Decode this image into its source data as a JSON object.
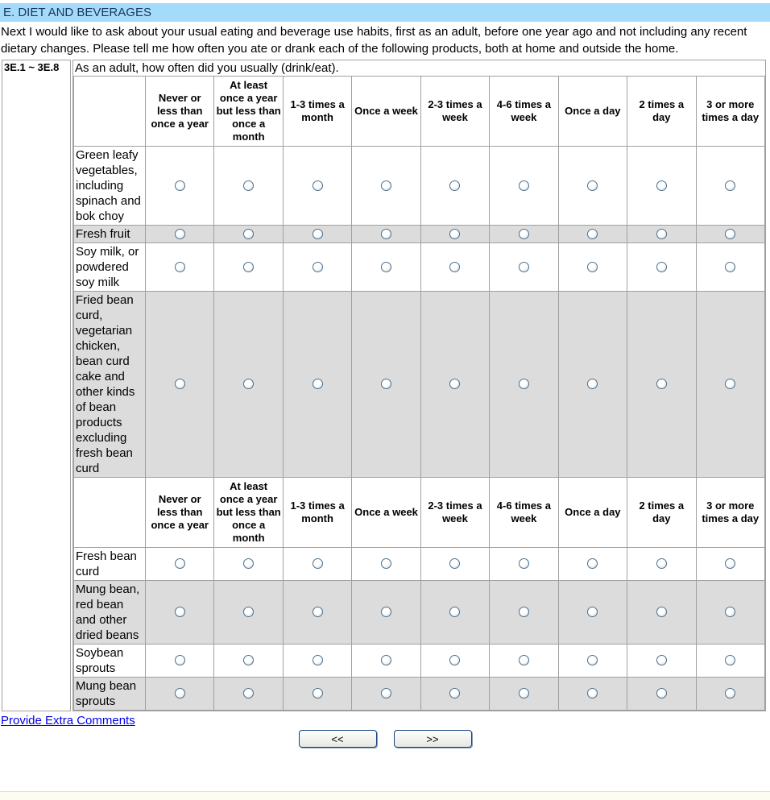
{
  "section": {
    "title": "E. DIET AND BEVERAGES"
  },
  "intro": "Next I would like to ask about your usual eating and beverage use habits, first as an adult, before one year ago and not including any recent dietary changes. Please tell me how often you ate or drank each of the following products, both at home and outside the home.",
  "question": {
    "number": "3E.1 ~ 3E.8",
    "text": "As an adult, how often did you usually (drink/eat)."
  },
  "frequency_options": [
    "Never or less than once a year",
    "At least once a year but less than once a month",
    "1-3 times a month",
    "Once a week",
    "2-3 times a week",
    "4-6 times a week",
    "Once a day",
    "2 times a day",
    "3 or more times a day"
  ],
  "items_group1": [
    {
      "label": "Green leafy vegetables, including spinach and bok choy",
      "shaded": false
    },
    {
      "label": "Fresh fruit",
      "shaded": true
    },
    {
      "label": "Soy milk, or powdered soy milk",
      "shaded": false
    },
    {
      "label": "Fried bean curd, vegetarian chicken, bean curd cake and other kinds of bean products excluding fresh bean curd",
      "shaded": true
    }
  ],
  "items_group2": [
    {
      "label": "Fresh bean curd",
      "shaded": false
    },
    {
      "label": "Mung bean, red bean and other dried beans",
      "shaded": true
    },
    {
      "label": "Soybean sprouts",
      "shaded": false
    },
    {
      "label": "Mung bean sprouts",
      "shaded": true
    }
  ],
  "footer": {
    "comments_link": "Provide Extra Comments",
    "back_button": "<<",
    "next_button": ">>"
  },
  "colors": {
    "section_bar_bg": "#A5DBFA",
    "section_title_text": "#17365D",
    "shaded_row": "#DCDCDC",
    "grid_border": "#A0A0A0",
    "link": "#0000EE",
    "button_border": "#16437C",
    "footer_line": "#E3E3C7"
  }
}
